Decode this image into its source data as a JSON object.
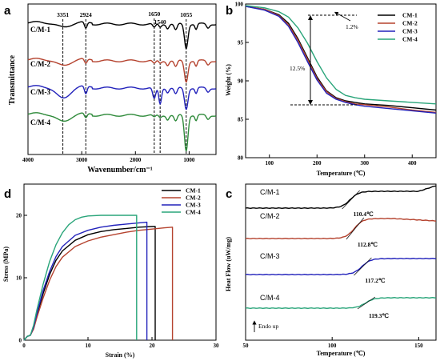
{
  "colors": {
    "CM-1": "#000000",
    "CM-2": "#b5432f",
    "CM-3": "#2222bb",
    "CM-4": "#2e8a3a",
    "CM-4-b": "#2aa57a"
  },
  "chart_data": [
    {
      "id": "a",
      "type": "line",
      "panel_label": "a",
      "xlabel": "Wavenumber/cm⁻¹",
      "ylabel": "Transmittance",
      "xlim": [
        4000,
        500
      ],
      "x_reversed": true,
      "xticks": [
        4000,
        3000,
        2000,
        1000
      ],
      "series_labels": [
        "C/M-1",
        "C/M-2",
        "C/M-3",
        "C/M-4"
      ],
      "peaks": [
        {
          "x": 3351,
          "label": "3351"
        },
        {
          "x": 2924,
          "label": "2924"
        },
        {
          "x": 1650,
          "label": "1650"
        },
        {
          "x": 1540,
          "label": "1540"
        },
        {
          "x": 1055,
          "label": "1055"
        }
      ]
    },
    {
      "id": "b",
      "type": "line",
      "panel_label": "b",
      "xlabel": "Temperature (℃)",
      "ylabel": "Weight (%)",
      "xlim": [
        50,
        450
      ],
      "ylim": [
        80,
        100
      ],
      "xticks": [
        100,
        200,
        300,
        400
      ],
      "yticks": [
        80,
        85,
        90,
        95,
        100
      ],
      "legend": [
        "CM-1",
        "CM-2",
        "CM-3",
        "CM-4"
      ],
      "legend_position": "top-right",
      "annotations": [
        "1.2%",
        "12.5%"
      ],
      "series": [
        {
          "name": "CM-1",
          "x": [
            50,
            90,
            120,
            140,
            160,
            180,
            200,
            220,
            240,
            260,
            280,
            300,
            350,
            400,
            450
          ],
          "y": [
            99.7,
            99.3,
            98.6,
            97.5,
            95.5,
            93.0,
            90.5,
            88.7,
            87.8,
            87.4,
            87.2,
            87.0,
            86.8,
            86.5,
            86.2
          ]
        },
        {
          "name": "CM-2",
          "x": [
            50,
            90,
            120,
            140,
            160,
            180,
            200,
            220,
            240,
            260,
            280,
            300,
            350,
            400,
            450
          ],
          "y": [
            99.7,
            99.3,
            98.5,
            97.3,
            95.3,
            92.8,
            90.3,
            88.6,
            87.7,
            87.3,
            87.0,
            86.9,
            86.6,
            86.2,
            85.9
          ]
        },
        {
          "name": "CM-3",
          "x": [
            50,
            90,
            120,
            140,
            160,
            180,
            200,
            220,
            240,
            260,
            280,
            300,
            350,
            400,
            450
          ],
          "y": [
            99.7,
            99.2,
            98.4,
            97.1,
            95.0,
            92.5,
            90.1,
            88.4,
            87.6,
            87.2,
            86.9,
            86.7,
            86.4,
            86.1,
            85.8
          ]
        },
        {
          "name": "CM-4",
          "x": [
            50,
            90,
            120,
            140,
            160,
            180,
            200,
            220,
            240,
            260,
            280,
            300,
            350,
            400,
            450
          ],
          "y": [
            99.8,
            99.5,
            99.0,
            98.3,
            96.9,
            94.9,
            92.5,
            90.4,
            88.9,
            88.1,
            87.8,
            87.6,
            87.4,
            87.2,
            87.0
          ]
        }
      ]
    },
    {
      "id": "d",
      "type": "line",
      "panel_label": "d",
      "xlabel": "Strain (%)",
      "ylabel": "Stress (MPa)",
      "xlim": [
        0,
        30
      ],
      "ylim": [
        0,
        25
      ],
      "xticks": [
        0,
        10,
        20,
        30
      ],
      "yticks": [
        0,
        10,
        20
      ],
      "legend": [
        "CM-1",
        "CM-2",
        "CM-3",
        "CM-4"
      ],
      "legend_position": "top-right",
      "series": [
        {
          "name": "CM-1",
          "x": [
            0,
            0.5,
            1,
            1.5,
            2,
            3,
            4,
            5,
            6,
            8,
            10,
            12,
            14,
            16,
            18,
            20,
            20.5,
            20.5
          ],
          "y": [
            0,
            0.6,
            0.8,
            2,
            4,
            7.5,
            10.5,
            12.8,
            14.3,
            16.0,
            16.9,
            17.4,
            17.7,
            17.9,
            18.1,
            18.2,
            18.2,
            0
          ]
        },
        {
          "name": "CM-2",
          "x": [
            0,
            0.5,
            1,
            1.5,
            2,
            3,
            4,
            5,
            6,
            8,
            10,
            12,
            14,
            16,
            18,
            20,
            22,
            23.2,
            23.2
          ],
          "y": [
            0,
            0.6,
            0.8,
            1.8,
            3.6,
            6.8,
            9.6,
            11.8,
            13.3,
            15.0,
            15.9,
            16.5,
            16.9,
            17.3,
            17.6,
            17.8,
            18.0,
            18.1,
            0
          ]
        },
        {
          "name": "CM-3",
          "x": [
            0,
            0.5,
            1,
            1.5,
            2,
            3,
            4,
            5,
            6,
            8,
            10,
            12,
            14,
            16,
            18,
            19.2,
            19.2
          ],
          "y": [
            0,
            0.6,
            0.8,
            2.1,
            4.2,
            8.0,
            11.0,
            13.4,
            15.0,
            16.8,
            17.6,
            18.1,
            18.4,
            18.6,
            18.8,
            18.9,
            0
          ]
        },
        {
          "name": "CM-4",
          "x": [
            0,
            0.5,
            1,
            1.5,
            2,
            3,
            4,
            5,
            6,
            7,
            8,
            9,
            10,
            12,
            14,
            16,
            17.6,
            17.6
          ],
          "y": [
            0,
            0.6,
            0.8,
            2.4,
            4.8,
            9.0,
            12.6,
            15.3,
            17.2,
            18.5,
            19.3,
            19.7,
            19.9,
            20.0,
            20.0,
            20.0,
            20.0,
            0
          ]
        }
      ]
    },
    {
      "id": "c",
      "type": "line",
      "panel_label": "c",
      "xlabel": "Temperature (℃)",
      "ylabel": "Heat Flow (uW/mg)",
      "xlim": [
        50,
        160
      ],
      "xticks": [
        50,
        100,
        150
      ],
      "series_labels": [
        "C/M-1",
        "C/M-2",
        "C/M-3",
        "C/M-4"
      ],
      "transitions": [
        "110.4℃",
        "112.8℃",
        "117.2℃",
        "119.3℃"
      ],
      "note": "Endo up"
    }
  ]
}
